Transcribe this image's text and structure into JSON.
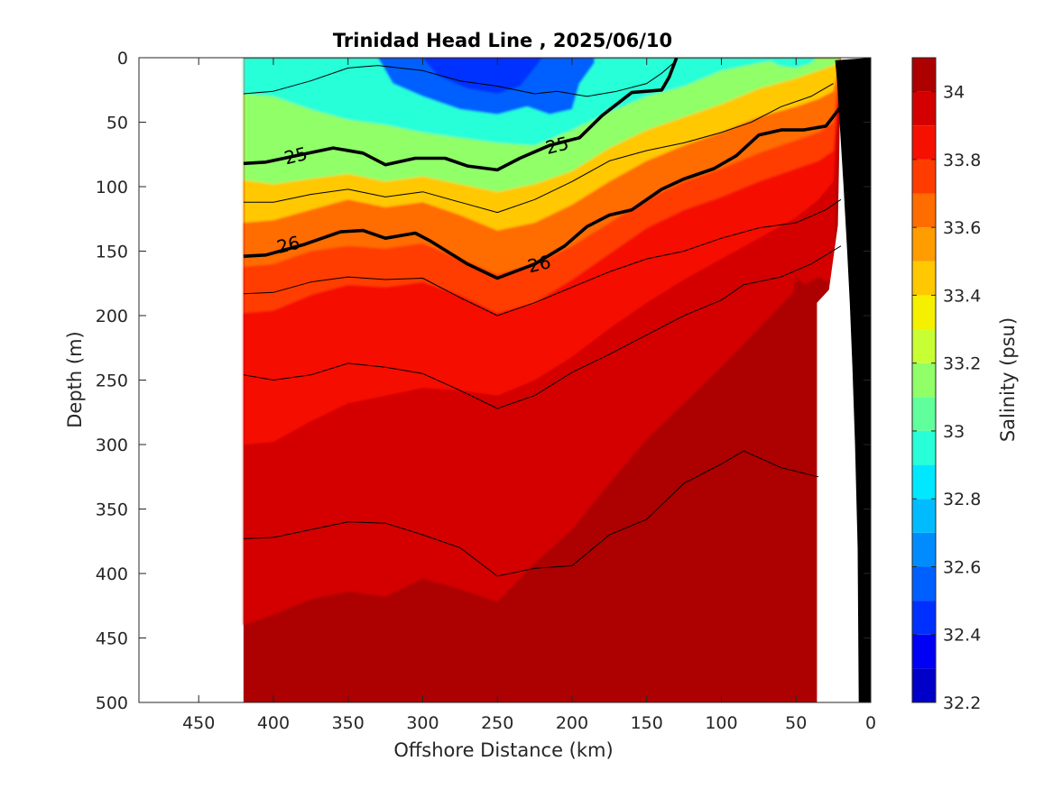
{
  "chart_data": {
    "type": "heatmap",
    "title": "Trinidad Head Line , 2025/06/10",
    "xlabel": "Offshore Distance (km)",
    "ylabel": "Depth (m)",
    "colorbar_label": "Salinity (psu)",
    "xlim": [
      490,
      0
    ],
    "ylim": [
      500,
      0
    ],
    "x_reversed": true,
    "y_reversed": true,
    "x_ticks": [
      450,
      400,
      350,
      300,
      250,
      200,
      150,
      100,
      50,
      0
    ],
    "y_ticks": [
      0,
      50,
      100,
      150,
      200,
      250,
      300,
      350,
      400,
      450,
      500
    ],
    "colorbar_ticks": [
      32.2,
      32.4,
      32.6,
      32.8,
      33,
      33.2,
      33.4,
      33.6,
      33.8,
      34
    ],
    "colorbar_range": [
      32.2,
      34.1
    ],
    "salinity_levels": [
      32.2,
      32.3,
      32.4,
      32.5,
      32.6,
      32.7,
      32.8,
      32.9,
      33.0,
      33.1,
      33.2,
      33.3,
      33.4,
      33.5,
      33.6,
      33.7,
      33.8,
      33.9,
      34.0
    ],
    "level_colors": [
      "#000090",
      "#0000c8",
      "#0000f5",
      "#0030ff",
      "#0060ff",
      "#008cff",
      "#00bcff",
      "#00e8ff",
      "#28ffd8",
      "#60ff9c",
      "#90ff68",
      "#c8ff34",
      "#f4f000",
      "#ffc800",
      "#ff9c00",
      "#ff6c00",
      "#ff3c00",
      "#f51000",
      "#d40000",
      "#ad0000",
      "#800000"
    ],
    "data_x_range_km": [
      420,
      20
    ],
    "x_grid_km": [
      420,
      400,
      375,
      350,
      325,
      300,
      275,
      250,
      225,
      200,
      175,
      150,
      125,
      100,
      75,
      50,
      35,
      25
    ],
    "isohalines_depth_m": [
      {
        "salinity": 33.0,
        "depth": [
          28,
          30,
          40,
          48,
          52,
          58,
          62,
          66,
          68,
          56,
          42,
          30,
          22,
          10,
          4,
          0,
          0,
          0
        ]
      },
      {
        "salinity": 33.3,
        "depth": [
          95,
          98,
          94,
          90,
          96,
          92,
          98,
          104,
          98,
          88,
          70,
          56,
          46,
          36,
          24,
          16,
          10,
          6
        ]
      },
      {
        "salinity": 33.5,
        "depth": [
          128,
          126,
          118,
          110,
          116,
          112,
          122,
          134,
          128,
          114,
          96,
          80,
          68,
          58,
          46,
          38,
          32,
          26
        ]
      },
      {
        "salinity": 33.7,
        "depth": [
          162,
          160,
          150,
          146,
          148,
          144,
          156,
          168,
          160,
          146,
          128,
          110,
          96,
          86,
          74,
          64,
          58,
          50
        ]
      },
      {
        "salinity": 33.8,
        "depth": [
          198,
          196,
          184,
          176,
          178,
          174,
          184,
          198,
          190,
          172,
          152,
          132,
          118,
          108,
          96,
          86,
          80,
          72
        ]
      },
      {
        "salinity": 33.9,
        "depth": [
          300,
          298,
          282,
          268,
          262,
          256,
          258,
          262,
          250,
          232,
          210,
          190,
          172,
          156,
          140,
          124,
          110,
          96
        ]
      },
      {
        "salinity": 34.0,
        "depth": [
          440,
          432,
          420,
          414,
          418,
          404,
          412,
          422,
          392,
          366,
          330,
          296,
          268,
          240,
          210,
          180,
          170,
          176
        ]
      }
    ],
    "isopycnals": [
      {
        "value": 24.5,
        "labeled": false,
        "points": [
          [
            420,
            28
          ],
          [
            400,
            26
          ],
          [
            375,
            18
          ],
          [
            350,
            8
          ],
          [
            330,
            6
          ],
          [
            300,
            10
          ],
          [
            275,
            18
          ],
          [
            250,
            22
          ],
          [
            225,
            28
          ],
          [
            210,
            26
          ],
          [
            190,
            30
          ],
          [
            170,
            26
          ],
          [
            150,
            20
          ],
          [
            140,
            12
          ],
          [
            130,
            2
          ]
        ]
      },
      {
        "value": 25,
        "labeled": true,
        "label_x_km": 385,
        "label_x_km_2": 210,
        "points": [
          [
            420,
            82
          ],
          [
            405,
            81
          ],
          [
            385,
            76
          ],
          [
            360,
            70
          ],
          [
            340,
            74
          ],
          [
            325,
            83
          ],
          [
            305,
            78
          ],
          [
            285,
            78
          ],
          [
            270,
            84
          ],
          [
            250,
            87
          ],
          [
            235,
            78
          ],
          [
            215,
            68
          ],
          [
            195,
            62
          ],
          [
            180,
            45
          ],
          [
            160,
            27
          ],
          [
            140,
            25
          ],
          [
            135,
            15
          ],
          [
            130,
            0
          ]
        ]
      },
      {
        "value": 25.5,
        "labeled": false,
        "points": [
          [
            420,
            112
          ],
          [
            400,
            112
          ],
          [
            375,
            106
          ],
          [
            350,
            102
          ],
          [
            325,
            108
          ],
          [
            300,
            104
          ],
          [
            275,
            112
          ],
          [
            250,
            120
          ],
          [
            225,
            110
          ],
          [
            200,
            96
          ],
          [
            175,
            80
          ],
          [
            150,
            72
          ],
          [
            125,
            66
          ],
          [
            100,
            58
          ],
          [
            80,
            50
          ],
          [
            60,
            38
          ],
          [
            40,
            30
          ],
          [
            25,
            20
          ]
        ]
      },
      {
        "value": 26,
        "labeled": true,
        "label_x_km": 390,
        "label_x_km_2": 222,
        "points": [
          [
            420,
            154
          ],
          [
            405,
            153
          ],
          [
            380,
            145
          ],
          [
            355,
            135
          ],
          [
            340,
            134
          ],
          [
            325,
            140
          ],
          [
            305,
            136
          ],
          [
            295,
            142
          ],
          [
            270,
            160
          ],
          [
            250,
            171
          ],
          [
            225,
            160
          ],
          [
            205,
            146
          ],
          [
            190,
            131
          ],
          [
            175,
            122
          ],
          [
            160,
            118
          ],
          [
            140,
            102
          ],
          [
            125,
            94
          ],
          [
            105,
            86
          ],
          [
            90,
            76
          ],
          [
            75,
            60
          ],
          [
            60,
            56
          ],
          [
            45,
            56
          ],
          [
            30,
            53
          ],
          [
            20,
            38
          ]
        ]
      },
      {
        "value": 26.3,
        "labeled": false,
        "points": [
          [
            420,
            183
          ],
          [
            400,
            182
          ],
          [
            375,
            174
          ],
          [
            350,
            170
          ],
          [
            325,
            172
          ],
          [
            300,
            171
          ],
          [
            275,
            186
          ],
          [
            250,
            200
          ],
          [
            225,
            190
          ],
          [
            200,
            178
          ],
          [
            175,
            166
          ],
          [
            150,
            156
          ],
          [
            125,
            150
          ],
          [
            100,
            140
          ],
          [
            75,
            132
          ],
          [
            50,
            128
          ],
          [
            30,
            118
          ],
          [
            20,
            110
          ]
        ]
      },
      {
        "value": 26.6,
        "labeled": false,
        "points": [
          [
            420,
            246
          ],
          [
            400,
            250
          ],
          [
            375,
            246
          ],
          [
            350,
            237
          ],
          [
            325,
            240
          ],
          [
            300,
            245
          ],
          [
            275,
            258
          ],
          [
            250,
            272
          ],
          [
            225,
            262
          ],
          [
            200,
            244
          ],
          [
            175,
            230
          ],
          [
            150,
            215
          ],
          [
            125,
            200
          ],
          [
            100,
            188
          ],
          [
            85,
            176
          ],
          [
            60,
            170
          ],
          [
            40,
            160
          ],
          [
            20,
            146
          ]
        ]
      },
      {
        "value": 26.9,
        "labeled": false,
        "points": [
          [
            420,
            373
          ],
          [
            400,
            372
          ],
          [
            375,
            366
          ],
          [
            350,
            360
          ],
          [
            325,
            361
          ],
          [
            300,
            370
          ],
          [
            275,
            380
          ],
          [
            250,
            402
          ],
          [
            225,
            396
          ],
          [
            200,
            394
          ],
          [
            175,
            370
          ],
          [
            150,
            358
          ],
          [
            125,
            330
          ],
          [
            100,
            315
          ],
          [
            85,
            305
          ],
          [
            60,
            318
          ],
          [
            35,
            325
          ]
        ]
      }
    ],
    "bathymetry_points": [
      [
        0,
        0
      ],
      [
        0,
        500
      ],
      [
        23,
        500
      ],
      [
        25,
        380
      ],
      [
        30,
        300
      ],
      [
        35,
        240
      ],
      [
        40,
        190
      ],
      [
        45,
        150
      ],
      [
        52,
        100
      ],
      [
        58,
        60
      ],
      [
        64,
        20
      ],
      [
        68,
        2
      ]
    ]
  }
}
